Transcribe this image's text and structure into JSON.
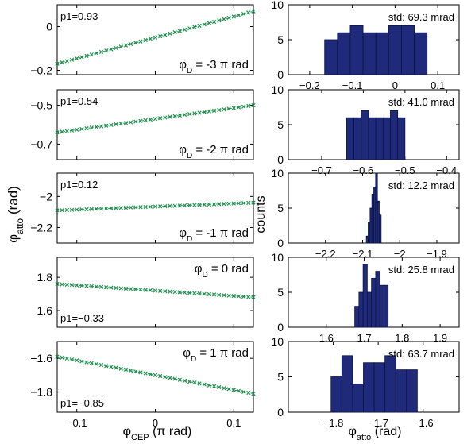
{
  "figure": {
    "left_ylabel": "φ",
    "left_ylabel_sub": "atto",
    "left_ylabel_unit": " (rad)",
    "left_xlabel": "φ",
    "left_xlabel_sub": "CEP",
    "left_xlabel_unit": " (π rad)",
    "right_ylabel": "counts",
    "right_xlabel": "φ",
    "right_xlabel_sub": "atto",
    "right_xlabel_unit": " (rad)"
  },
  "colors": {
    "line": "#1f8f4e",
    "bar_fill": "#1f2a7a",
    "bar_edge": "#0d1440",
    "axes": "#000000"
  },
  "chart_data": [
    {
      "type": "scatter",
      "panel": "left-1",
      "x_range": [
        -0.125,
        0.125
      ],
      "ylim": [
        -0.22,
        0.1
      ],
      "yticks": [
        -0.2,
        0
      ],
      "ytick_labels": [
        "−0.2",
        "0"
      ],
      "xticks": [
        -0.1,
        0,
        0.1
      ],
      "show_xticks": false,
      "series": [
        {
          "y_start": -0.17,
          "y_end": 0.07,
          "n_points": 41
        }
      ],
      "annotation_p1": "p1=0.93",
      "annotation_phid_pre": "φ",
      "annotation_phid_sub": "D",
      "annotation_phid_post": " = -3 π rad",
      "p1_corner": "top-left",
      "phid_corner": "bottom-right"
    },
    {
      "type": "scatter",
      "panel": "left-2",
      "x_range": [
        -0.125,
        0.125
      ],
      "ylim": [
        -0.78,
        -0.42
      ],
      "yticks": [
        -0.7,
        -0.5
      ],
      "ytick_labels": [
        "−0.7",
        "−0.5"
      ],
      "xticks": [
        -0.1,
        0,
        0.1
      ],
      "show_xticks": false,
      "series": [
        {
          "y_start": -0.64,
          "y_end": -0.5,
          "n_points": 41
        }
      ],
      "annotation_p1": "p1=0.54",
      "annotation_phid_pre": "φ",
      "annotation_phid_sub": "D",
      "annotation_phid_post": " = -2 π rad",
      "p1_corner": "top-left",
      "phid_corner": "bottom-right"
    },
    {
      "type": "scatter",
      "panel": "left-3",
      "x_range": [
        -0.125,
        0.125
      ],
      "ylim": [
        -2.3,
        -1.85
      ],
      "yticks": [
        -2.2,
        -2
      ],
      "ytick_labels": [
        "−2.2",
        "−2"
      ],
      "xticks": [
        -0.1,
        0,
        0.1
      ],
      "show_xticks": false,
      "series": [
        {
          "y_start": -2.09,
          "y_end": -2.04,
          "n_points": 41
        }
      ],
      "annotation_p1": "p1=0.12",
      "annotation_phid_pre": "φ",
      "annotation_phid_sub": "D",
      "annotation_phid_post": " = -1 π rad",
      "p1_corner": "top-left",
      "phid_corner": "bottom-right"
    },
    {
      "type": "scatter",
      "panel": "left-4",
      "x_range": [
        -0.125,
        0.125
      ],
      "ylim": [
        1.5,
        1.92
      ],
      "yticks": [
        1.6,
        1.8
      ],
      "ytick_labels": [
        "1.6",
        "1.8"
      ],
      "xticks": [
        -0.1,
        0,
        0.1
      ],
      "show_xticks": false,
      "series": [
        {
          "y_start": 1.76,
          "y_end": 1.68,
          "n_points": 41
        }
      ],
      "annotation_p1": "p1=−0.33",
      "annotation_phid_pre": "φ",
      "annotation_phid_sub": "D",
      "annotation_phid_post": " = 0 rad",
      "p1_corner": "bottom-left",
      "phid_corner": "top-right"
    },
    {
      "type": "scatter",
      "panel": "left-5",
      "x_range": [
        -0.125,
        0.125
      ],
      "ylim": [
        -1.92,
        -1.5
      ],
      "yticks": [
        -1.8,
        -1.6
      ],
      "ytick_labels": [
        "−1.8",
        "−1.6"
      ],
      "xticks": [
        -0.1,
        0,
        0.1
      ],
      "xtick_labels": [
        "−0.1",
        "0",
        "0.1"
      ],
      "show_xticks": true,
      "series": [
        {
          "y_start": -1.59,
          "y_end": -1.81,
          "n_points": 41
        }
      ],
      "annotation_p1": "p1=−0.85",
      "annotation_phid_pre": "φ",
      "annotation_phid_sub": "D",
      "annotation_phid_post": " = 1 π rad",
      "p1_corner": "bottom-left",
      "phid_corner": "top-right"
    },
    {
      "type": "bar",
      "panel": "right-1",
      "xlim": [
        -0.25,
        0.15
      ],
      "ylim": [
        0,
        10
      ],
      "xticks": [
        -0.2,
        -0.1,
        0,
        0.1
      ],
      "xtick_labels": [
        "−0.2",
        "−0.1",
        "0",
        "0.1"
      ],
      "yticks": [
        0,
        5,
        10
      ],
      "ytick_labels": [
        "0",
        "5",
        "10"
      ],
      "bin_edges": [
        -0.165,
        -0.135,
        -0.105,
        -0.075,
        -0.045,
        -0.015,
        0.015,
        0.045,
        0.075
      ],
      "values": [
        5,
        6,
        7,
        6,
        6,
        7,
        7,
        6
      ],
      "annotation": "std: 69.3 mrad"
    },
    {
      "type": "bar",
      "panel": "right-2",
      "xlim": [
        -0.78,
        -0.37
      ],
      "ylim": [
        0,
        10
      ],
      "xticks": [
        -0.7,
        -0.6,
        -0.5,
        -0.4
      ],
      "xtick_labels": [
        "−0.7",
        "−0.6",
        "−0.5",
        "−0.4"
      ],
      "yticks": [
        0,
        5,
        10
      ],
      "ytick_labels": [
        "0",
        "5",
        "10"
      ],
      "bin_edges": [
        -0.64,
        -0.6225,
        -0.605,
        -0.5875,
        -0.57,
        -0.5525,
        -0.535,
        -0.5175,
        -0.5
      ],
      "values": [
        6,
        6,
        7,
        6,
        6,
        6,
        7,
        6
      ],
      "annotation": "std: 41.0 mrad"
    },
    {
      "type": "bar",
      "panel": "right-3",
      "xlim": [
        -2.3,
        -1.84
      ],
      "ylim": [
        0,
        10
      ],
      "xticks": [
        -2.2,
        -2.1,
        -2,
        -1.9
      ],
      "xtick_labels": [
        "−2.2",
        "−2.1",
        "−2",
        "−1.9"
      ],
      "yticks": [
        0,
        5,
        10
      ],
      "ytick_labels": [
        "0",
        "5",
        "10"
      ],
      "bin_edges": [
        -2.09,
        -2.085,
        -2.08,
        -2.075,
        -2.07,
        -2.065,
        -2.06,
        -2.055,
        -2.05
      ],
      "values": [
        1,
        3,
        5,
        7,
        8,
        10,
        6,
        4
      ],
      "annotation": "std: 12.2 mrad"
    },
    {
      "type": "bar",
      "panel": "right-4",
      "xlim": [
        1.5,
        1.95
      ],
      "ylim": [
        0,
        10
      ],
      "xticks": [
        1.6,
        1.7,
        1.8,
        1.9
      ],
      "xtick_labels": [
        "1.6",
        "1.7",
        "1.8",
        "1.9"
      ],
      "yticks": [
        0,
        5,
        10
      ],
      "ytick_labels": [
        "0",
        "5",
        "10"
      ],
      "bin_edges": [
        1.675,
        1.686,
        1.697,
        1.708,
        1.719,
        1.73,
        1.741,
        1.752,
        1.763
      ],
      "values": [
        3,
        5,
        9,
        5,
        7,
        8,
        6,
        6
      ],
      "annotation": "std: 25.8 mrad"
    },
    {
      "type": "bar",
      "panel": "right-5",
      "xlim": [
        -1.9,
        -1.52
      ],
      "ylim": [
        0,
        10
      ],
      "xticks": [
        -1.8,
        -1.7,
        -1.6
      ],
      "xtick_labels": [
        "−1.8",
        "−1.7",
        "−1.6"
      ],
      "yticks": [
        0,
        5,
        10
      ],
      "ytick_labels": [
        "0",
        "5",
        "10"
      ],
      "bin_edges": [
        -1.805,
        -1.781,
        -1.757,
        -1.733,
        -1.709,
        -1.685,
        -1.661,
        -1.637,
        -1.613
      ],
      "values": [
        5,
        8,
        4,
        7,
        7,
        8,
        6,
        6
      ],
      "annotation": "std: 63.7 mrad"
    }
  ]
}
